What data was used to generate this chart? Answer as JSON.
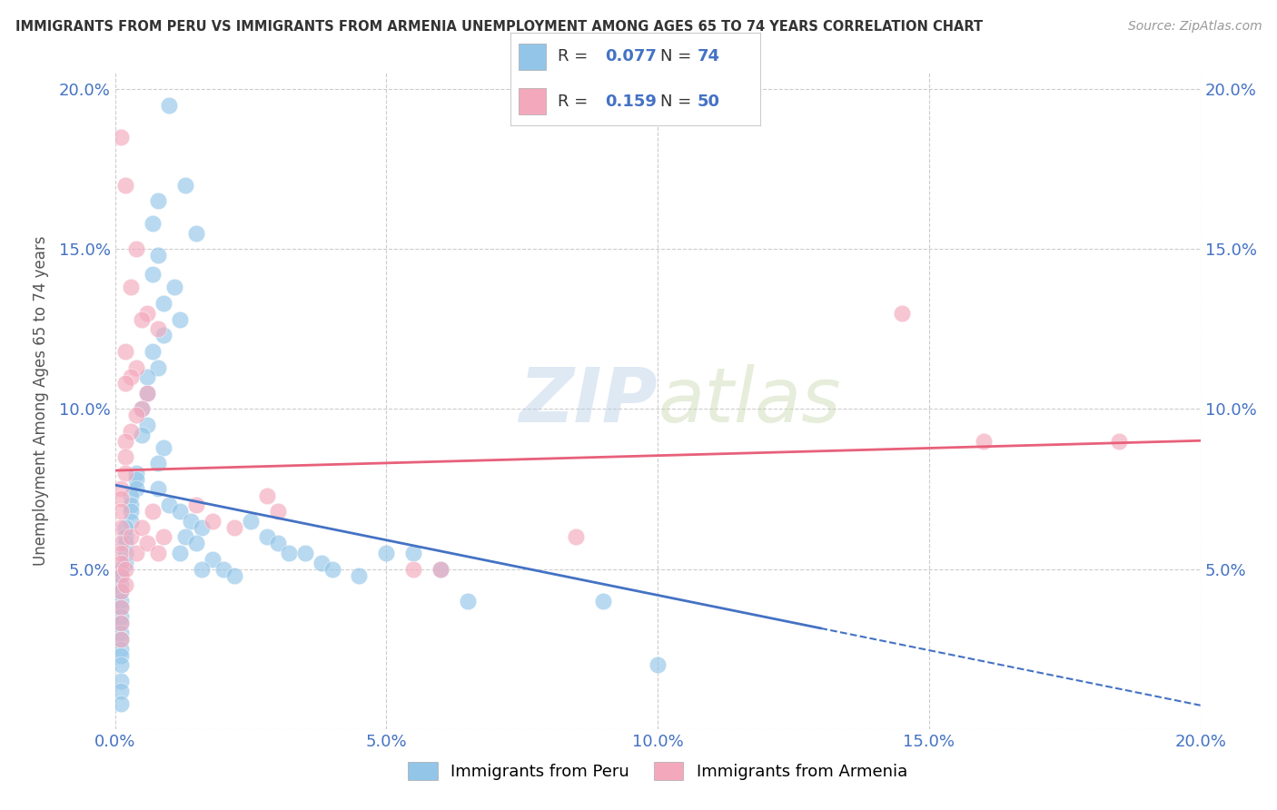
{
  "title": "IMMIGRANTS FROM PERU VS IMMIGRANTS FROM ARMENIA UNEMPLOYMENT AMONG AGES 65 TO 74 YEARS CORRELATION CHART",
  "source": "Source: ZipAtlas.com",
  "ylabel": "Unemployment Among Ages 65 to 74 years",
  "xlim": [
    0.0,
    0.2
  ],
  "ylim": [
    0.0,
    0.205
  ],
  "xticks": [
    0.0,
    0.05,
    0.1,
    0.15,
    0.2
  ],
  "yticks": [
    0.0,
    0.05,
    0.1,
    0.15,
    0.2
  ],
  "xticklabels": [
    "0.0%",
    "5.0%",
    "10.0%",
    "15.0%",
    "20.0%"
  ],
  "yticklabels": [
    "",
    "5.0%",
    "10.0%",
    "15.0%",
    "20.0%"
  ],
  "peru_color": "#92C5E8",
  "armenia_color": "#F4A8BC",
  "peru_R": 0.077,
  "peru_N": 74,
  "armenia_R": 0.159,
  "armenia_N": 50,
  "peru_line_color": "#4472C4",
  "armenia_line_color": "#E8607A",
  "watermark_zip": "ZIP",
  "watermark_atlas": "atlas",
  "background_color": "#ffffff",
  "tick_color": "#4472C4",
  "label_color": "#555555",
  "peru_scatter": [
    [
      0.01,
      0.195
    ],
    [
      0.013,
      0.17
    ],
    [
      0.008,
      0.165
    ],
    [
      0.007,
      0.158
    ],
    [
      0.015,
      0.155
    ],
    [
      0.008,
      0.148
    ],
    [
      0.007,
      0.142
    ],
    [
      0.011,
      0.138
    ],
    [
      0.009,
      0.133
    ],
    [
      0.012,
      0.128
    ],
    [
      0.009,
      0.123
    ],
    [
      0.007,
      0.118
    ],
    [
      0.008,
      0.113
    ],
    [
      0.006,
      0.11
    ],
    [
      0.006,
      0.105
    ],
    [
      0.005,
      0.1
    ],
    [
      0.006,
      0.095
    ],
    [
      0.005,
      0.092
    ],
    [
      0.009,
      0.088
    ],
    [
      0.008,
      0.083
    ],
    [
      0.004,
      0.08
    ],
    [
      0.004,
      0.078
    ],
    [
      0.004,
      0.075
    ],
    [
      0.003,
      0.073
    ],
    [
      0.003,
      0.07
    ],
    [
      0.003,
      0.068
    ],
    [
      0.003,
      0.065
    ],
    [
      0.002,
      0.063
    ],
    [
      0.002,
      0.06
    ],
    [
      0.002,
      0.058
    ],
    [
      0.002,
      0.055
    ],
    [
      0.002,
      0.052
    ],
    [
      0.001,
      0.05
    ],
    [
      0.001,
      0.048
    ],
    [
      0.001,
      0.045
    ],
    [
      0.001,
      0.043
    ],
    [
      0.001,
      0.04
    ],
    [
      0.001,
      0.038
    ],
    [
      0.001,
      0.035
    ],
    [
      0.001,
      0.033
    ],
    [
      0.001,
      0.03
    ],
    [
      0.001,
      0.028
    ],
    [
      0.001,
      0.025
    ],
    [
      0.001,
      0.023
    ],
    [
      0.001,
      0.02
    ],
    [
      0.001,
      0.015
    ],
    [
      0.001,
      0.012
    ],
    [
      0.001,
      0.008
    ],
    [
      0.008,
      0.075
    ],
    [
      0.01,
      0.07
    ],
    [
      0.012,
      0.068
    ],
    [
      0.014,
      0.065
    ],
    [
      0.016,
      0.063
    ],
    [
      0.013,
      0.06
    ],
    [
      0.015,
      0.058
    ],
    [
      0.012,
      0.055
    ],
    [
      0.018,
      0.053
    ],
    [
      0.016,
      0.05
    ],
    [
      0.02,
      0.05
    ],
    [
      0.022,
      0.048
    ],
    [
      0.025,
      0.065
    ],
    [
      0.028,
      0.06
    ],
    [
      0.03,
      0.058
    ],
    [
      0.032,
      0.055
    ],
    [
      0.035,
      0.055
    ],
    [
      0.038,
      0.052
    ],
    [
      0.04,
      0.05
    ],
    [
      0.045,
      0.048
    ],
    [
      0.05,
      0.055
    ],
    [
      0.055,
      0.055
    ],
    [
      0.06,
      0.05
    ],
    [
      0.065,
      0.04
    ],
    [
      0.09,
      0.04
    ],
    [
      0.1,
      0.02
    ]
  ],
  "armenia_scatter": [
    [
      0.001,
      0.185
    ],
    [
      0.002,
      0.17
    ],
    [
      0.004,
      0.15
    ],
    [
      0.003,
      0.138
    ],
    [
      0.006,
      0.13
    ],
    [
      0.005,
      0.128
    ],
    [
      0.008,
      0.125
    ],
    [
      0.002,
      0.118
    ],
    [
      0.004,
      0.113
    ],
    [
      0.003,
      0.11
    ],
    [
      0.002,
      0.108
    ],
    [
      0.006,
      0.105
    ],
    [
      0.005,
      0.1
    ],
    [
      0.004,
      0.098
    ],
    [
      0.003,
      0.093
    ],
    [
      0.002,
      0.09
    ],
    [
      0.002,
      0.085
    ],
    [
      0.002,
      0.08
    ],
    [
      0.001,
      0.075
    ],
    [
      0.001,
      0.072
    ],
    [
      0.001,
      0.068
    ],
    [
      0.001,
      0.063
    ],
    [
      0.001,
      0.058
    ],
    [
      0.001,
      0.055
    ],
    [
      0.001,
      0.052
    ],
    [
      0.001,
      0.048
    ],
    [
      0.001,
      0.043
    ],
    [
      0.001,
      0.038
    ],
    [
      0.001,
      0.033
    ],
    [
      0.001,
      0.028
    ],
    [
      0.002,
      0.05
    ],
    [
      0.002,
      0.045
    ],
    [
      0.003,
      0.06
    ],
    [
      0.004,
      0.055
    ],
    [
      0.005,
      0.063
    ],
    [
      0.006,
      0.058
    ],
    [
      0.007,
      0.068
    ],
    [
      0.009,
      0.06
    ],
    [
      0.008,
      0.055
    ],
    [
      0.015,
      0.07
    ],
    [
      0.018,
      0.065
    ],
    [
      0.022,
      0.063
    ],
    [
      0.028,
      0.073
    ],
    [
      0.03,
      0.068
    ],
    [
      0.055,
      0.05
    ],
    [
      0.06,
      0.05
    ],
    [
      0.085,
      0.06
    ],
    [
      0.145,
      0.13
    ],
    [
      0.16,
      0.09
    ],
    [
      0.185,
      0.09
    ]
  ]
}
